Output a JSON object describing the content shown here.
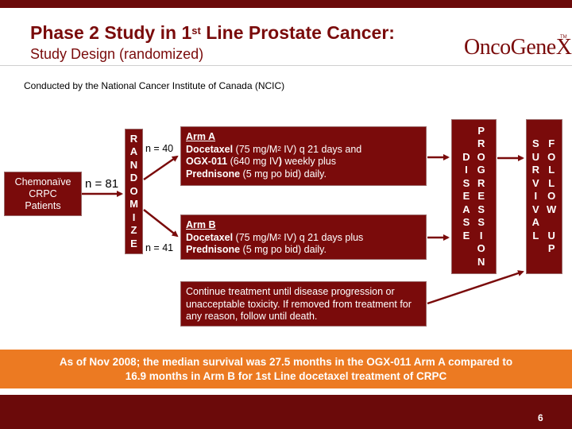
{
  "slide": {
    "title_prefix": "Phase 2 Study in 1",
    "title_sup": "st",
    "title_suffix": " Line Prostate Cancer:",
    "subtitle": "Study Design (randomized)",
    "logo": "OncoGeneX",
    "logo_tm": "TM",
    "ncic_note": "Conducted by the National Cancer Institute of Canada (NCIC)",
    "page_number": "6"
  },
  "colors": {
    "maroon": "#7a0b0b",
    "orange": "#ec7a22"
  },
  "diagram": {
    "patients": {
      "line1": "Chemonaïve",
      "line2": "CRPC",
      "line3": "Patients"
    },
    "n_total": "n = 81",
    "randomize_letters": [
      "R",
      "A",
      "N",
      "D",
      "O",
      "M",
      "I",
      "Z",
      "E"
    ],
    "n_arm_a": "n = 40",
    "n_arm_b": "n = 41",
    "arm_a": {
      "title": "Arm A",
      "drug1": "Docetaxel",
      "dose1_pre": " (75 mg/M",
      "dose1_sup": "2",
      "dose1_post": " IV) q 21 days and",
      "drug2": "OGX-011",
      "dose2_pre": " (640 mg IV",
      "dose2_paren": ")",
      "dose2_post": " weekly plus",
      "drug3": "Prednisone",
      "dose3": " (5 mg po bid) daily."
    },
    "arm_b": {
      "title": "Arm B",
      "drug1": "Docetaxel",
      "dose1_pre": " (75 mg/M",
      "dose1_sup": "2",
      "dose1_post": " IV) q 21 days plus",
      "drug2": "Prednisone",
      "dose2": " (5 mg po bid) daily."
    },
    "continue_text": "Continue treatment until disease progression or unacceptable toxicity.  If removed from treatment for any reason, follow until death.",
    "disease_col": [
      "",
      "",
      "D",
      "I",
      "S",
      "E",
      "A",
      "S",
      "E"
    ],
    "progression_col": [
      "P",
      "R",
      "O",
      "G",
      "R",
      "E",
      "S",
      "S",
      "I",
      "O",
      "N"
    ],
    "survival_col": [
      "S",
      "U",
      "R",
      "V",
      "I",
      "V",
      "A",
      "L"
    ],
    "followup_col": [
      "F",
      "O",
      "L",
      "L",
      "O",
      "W",
      "",
      "U",
      "P"
    ]
  },
  "banner": {
    "line1": "As of Nov 2008; the median survival was 27.5 months in the OGX-011 Arm A compared to",
    "line2": "16.9 months in Arm B for 1st Line docetaxel treatment of CRPC"
  }
}
